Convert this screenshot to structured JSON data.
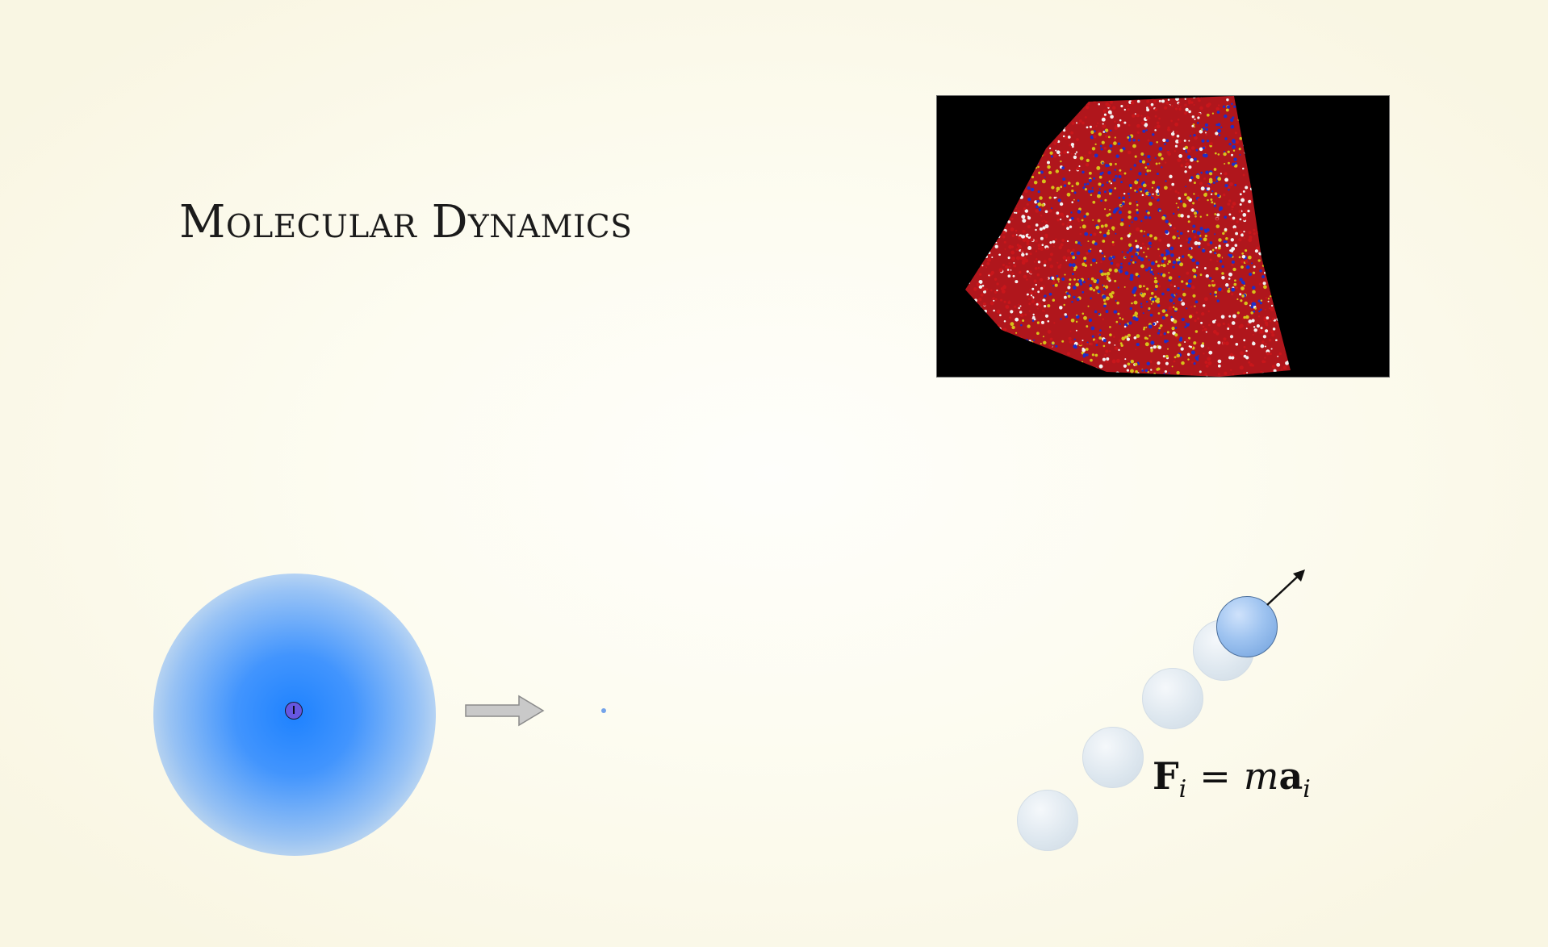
{
  "slide": {
    "title": "Molecular Dynamics"
  },
  "simulation_image": {
    "caption": "",
    "colors": {
      "background": "#000000",
      "oxygen": "#c8161b",
      "hydrogen": "#f2f2f2",
      "nitrogen": "#1f2fc8",
      "sulfur": "#d7c11a"
    }
  },
  "atom_diagram": {
    "cloud_color": "#1e82ff",
    "nucleus_color": "#6657e0",
    "arrow_icon": "right-arrow-icon",
    "point_color": "#74a3ea"
  },
  "trajectory": {
    "ghost_color": "#dce6ee",
    "current_color": "#9ec3f0",
    "arrow_icon": "velocity-arrow-icon"
  },
  "equation": {
    "force": "F",
    "force_subscript": "i",
    "equals": "=",
    "mass": "m",
    "acceleration": "a",
    "acceleration_subscript": "i"
  }
}
